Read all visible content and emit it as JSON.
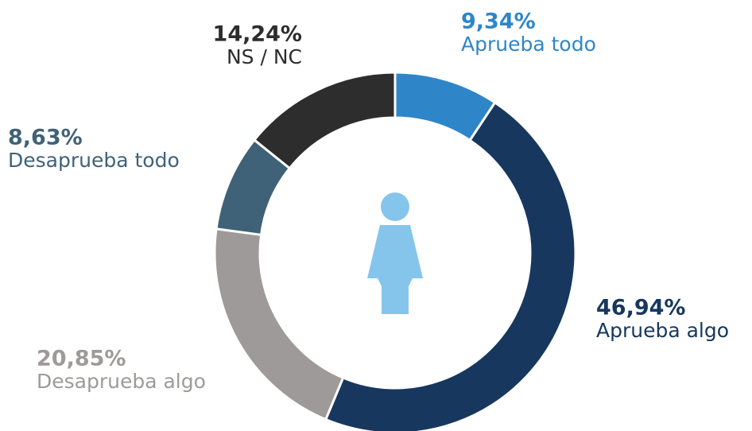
{
  "chart_data": {
    "type": "donut",
    "categories": [
      "Aprueba todo",
      "Aprueba algo",
      "Desaprueba algo",
      "Desaprueba todo",
      "NS / NC"
    ],
    "values": [
      9.34,
      46.94,
      20.85,
      8.63,
      14.24
    ],
    "value_labels": [
      "9,34%",
      "46,94%",
      "20,85%",
      "8,63%",
      "14,24%"
    ],
    "colors": [
      "#2e86c8",
      "#17375e",
      "#9e9a99",
      "#3f6278",
      "#2d2d2d"
    ]
  }
}
